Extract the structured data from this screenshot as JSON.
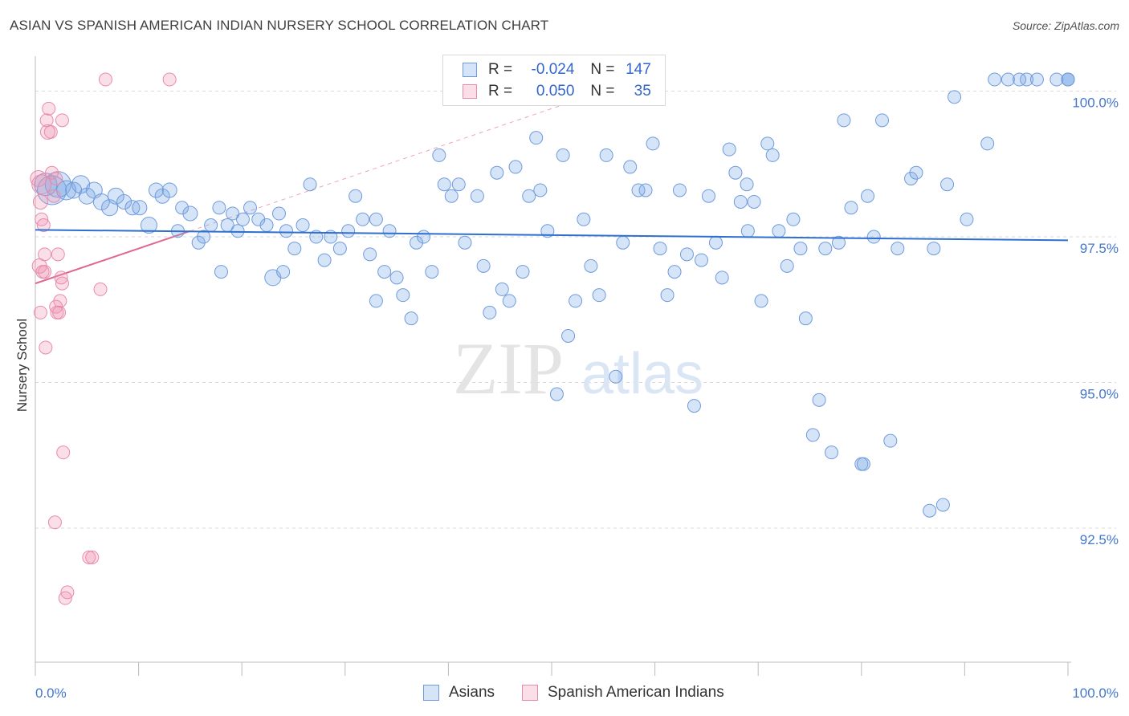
{
  "header": {
    "title": "ASIAN VS SPANISH AMERICAN INDIAN NURSERY SCHOOL CORRELATION CHART",
    "source": "Source: ZipAtlas.com"
  },
  "watermark": {
    "zip": "ZIP",
    "atlas": "atlas"
  },
  "legend": {
    "rows": [
      {
        "r_label": "R =",
        "r_value": "-0.024",
        "n_label": "N =",
        "n_value": "147"
      },
      {
        "r_label": "R =",
        "r_value": "0.050",
        "n_label": "N =",
        "n_value": "35"
      }
    ]
  },
  "bottom_legend": {
    "items": [
      {
        "label": "Asians"
      },
      {
        "label": "Spanish American Indians"
      }
    ]
  },
  "colors": {
    "asian_fill": "rgba(120,165,230,0.30)",
    "asian_stroke": "#6f9bdc",
    "asian_line": "#2f6fcf",
    "sai_fill": "rgba(240,150,180,0.30)",
    "sai_stroke": "#e98aab",
    "sai_line": "#e06890",
    "tick_text": "#4477cc",
    "grid": "#d9d9d9"
  },
  "chart_data": {
    "type": "scatter",
    "title": "ASIAN VS SPANISH AMERICAN INDIAN NURSERY SCHOOL CORRELATION CHART",
    "xlabel": "",
    "ylabel": "Nursery School",
    "xlim": [
      0,
      100
    ],
    "ylim": [
      90.2,
      100.6
    ],
    "x_tick_labels": [
      "0.0%",
      "100.0%"
    ],
    "y_ticks": [
      92.5,
      95.0,
      97.5,
      100.0
    ],
    "y_tick_labels": [
      "92.5%",
      "95.0%",
      "97.5%",
      "100.0%"
    ],
    "grid": true,
    "legend_position": "top-center",
    "series": [
      {
        "name": "Asians",
        "r": -0.024,
        "n": 147,
        "trend": {
          "x": [
            0,
            100
          ],
          "y": [
            97.62,
            97.44
          ]
        },
        "points": [
          [
            1.0,
            98.4,
            14
          ],
          [
            1.6,
            98.3,
            18
          ],
          [
            2.2,
            98.4,
            16
          ],
          [
            3.0,
            98.3,
            12
          ],
          [
            3.7,
            98.3,
            10
          ],
          [
            4.4,
            98.4,
            11
          ],
          [
            5.0,
            98.2,
            10
          ],
          [
            5.7,
            98.3,
            10
          ],
          [
            6.4,
            98.1,
            10
          ],
          [
            7.2,
            98.0,
            10
          ],
          [
            7.8,
            98.2,
            10
          ],
          [
            8.6,
            98.1,
            9
          ],
          [
            9.4,
            98.0,
            9
          ],
          [
            10.1,
            98.0,
            9
          ],
          [
            11.0,
            97.7,
            10
          ],
          [
            11.7,
            98.3,
            9
          ],
          [
            12.3,
            98.2,
            9
          ],
          [
            13.0,
            98.3,
            9
          ],
          [
            13.8,
            97.6,
            8
          ],
          [
            14.2,
            98.0,
            8
          ],
          [
            15.0,
            97.9,
            9
          ],
          [
            15.8,
            97.4,
            8
          ],
          [
            16.3,
            97.5,
            8
          ],
          [
            17.0,
            97.7,
            8
          ],
          [
            17.8,
            98.0,
            8
          ],
          [
            18.6,
            97.7,
            8
          ],
          [
            19.1,
            97.9,
            8
          ],
          [
            19.6,
            97.6,
            8
          ],
          [
            20.1,
            97.8,
            8
          ],
          [
            20.8,
            98.0,
            8
          ],
          [
            21.6,
            97.8,
            8
          ],
          [
            22.4,
            97.7,
            8
          ],
          [
            23.0,
            96.8,
            10
          ],
          [
            23.6,
            97.9,
            8
          ],
          [
            24.3,
            97.6,
            8
          ],
          [
            25.1,
            97.3,
            8
          ],
          [
            25.9,
            97.7,
            8
          ],
          [
            26.6,
            98.4,
            8
          ],
          [
            27.2,
            97.5,
            8
          ],
          [
            28.0,
            97.1,
            8
          ],
          [
            28.6,
            97.5,
            8
          ],
          [
            29.5,
            97.3,
            8
          ],
          [
            30.3,
            97.6,
            8
          ],
          [
            31.0,
            98.2,
            8
          ],
          [
            31.7,
            97.8,
            8
          ],
          [
            32.4,
            97.2,
            8
          ],
          [
            33.0,
            97.8,
            8
          ],
          [
            33.8,
            96.9,
            8
          ],
          [
            34.3,
            97.6,
            8
          ],
          [
            35.0,
            96.8,
            8
          ],
          [
            35.6,
            96.5,
            8
          ],
          [
            36.4,
            96.1,
            8
          ],
          [
            36.9,
            97.4,
            8
          ],
          [
            37.6,
            97.5,
            8
          ],
          [
            38.4,
            96.9,
            8
          ],
          [
            39.1,
            98.9,
            8
          ],
          [
            39.6,
            98.4,
            8
          ],
          [
            40.3,
            98.2,
            8
          ],
          [
            41.0,
            98.4,
            8
          ],
          [
            41.6,
            97.4,
            8
          ],
          [
            42.8,
            98.2,
            8
          ],
          [
            43.4,
            97.0,
            8
          ],
          [
            44.0,
            96.2,
            8
          ],
          [
            44.7,
            98.6,
            8
          ],
          [
            45.2,
            96.6,
            8
          ],
          [
            45.9,
            96.4,
            8
          ],
          [
            46.5,
            98.7,
            8
          ],
          [
            47.2,
            96.9,
            8
          ],
          [
            47.8,
            98.2,
            8
          ],
          [
            48.5,
            99.2,
            8
          ],
          [
            48.9,
            98.3,
            8
          ],
          [
            49.6,
            97.6,
            8
          ],
          [
            50.5,
            94.8,
            8
          ],
          [
            51.1,
            98.9,
            8
          ],
          [
            51.6,
            95.8,
            8
          ],
          [
            52.3,
            96.4,
            8
          ],
          [
            53.1,
            97.8,
            8
          ],
          [
            53.8,
            97.0,
            8
          ],
          [
            54.6,
            96.5,
            8
          ],
          [
            55.3,
            98.9,
            8
          ],
          [
            56.2,
            95.1,
            8
          ],
          [
            56.9,
            97.4,
            8
          ],
          [
            57.6,
            98.7,
            8
          ],
          [
            58.4,
            98.3,
            8
          ],
          [
            59.1,
            98.3,
            8
          ],
          [
            59.8,
            99.1,
            8
          ],
          [
            60.5,
            97.3,
            8
          ],
          [
            61.2,
            96.5,
            8
          ],
          [
            61.9,
            96.9,
            8
          ],
          [
            62.4,
            98.3,
            8
          ],
          [
            63.1,
            97.2,
            8
          ],
          [
            63.8,
            94.6,
            8
          ],
          [
            64.5,
            97.1,
            8
          ],
          [
            65.2,
            98.2,
            8
          ],
          [
            65.9,
            97.4,
            8
          ],
          [
            66.5,
            96.8,
            8
          ],
          [
            67.2,
            99.0,
            8
          ],
          [
            67.8,
            98.6,
            8
          ],
          [
            68.3,
            98.1,
            8
          ],
          [
            68.9,
            98.4,
            8
          ],
          [
            69.6,
            98.1,
            8
          ],
          [
            70.3,
            96.4,
            8
          ],
          [
            70.9,
            99.1,
            8
          ],
          [
            71.4,
            98.9,
            8
          ],
          [
            72.0,
            97.6,
            8
          ],
          [
            72.8,
            97.0,
            8
          ],
          [
            73.4,
            97.8,
            8
          ],
          [
            74.1,
            97.3,
            8
          ],
          [
            74.6,
            96.1,
            8
          ],
          [
            75.3,
            94.1,
            8
          ],
          [
            75.9,
            94.7,
            8
          ],
          [
            76.5,
            97.3,
            8
          ],
          [
            77.1,
            93.8,
            8
          ],
          [
            77.8,
            97.4,
            8
          ],
          [
            78.3,
            99.5,
            8
          ],
          [
            79.0,
            98.0,
            8
          ],
          [
            80.0,
            93.6,
            8
          ],
          [
            80.6,
            98.2,
            8
          ],
          [
            81.2,
            97.5,
            8
          ],
          [
            82.0,
            99.5,
            8
          ],
          [
            82.8,
            94.0,
            8
          ],
          [
            83.5,
            97.3,
            8
          ],
          [
            84.8,
            98.5,
            8
          ],
          [
            85.3,
            98.6,
            8
          ],
          [
            86.6,
            92.8,
            8
          ],
          [
            87.0,
            97.3,
            8
          ],
          [
            87.9,
            92.9,
            8
          ],
          [
            88.3,
            98.4,
            8
          ],
          [
            90.2,
            97.8,
            8
          ],
          [
            92.2,
            99.1,
            8
          ],
          [
            92.9,
            100.2,
            8
          ],
          [
            96.0,
            100.2,
            8
          ],
          [
            97.0,
            100.2,
            8
          ],
          [
            98.9,
            100.2,
            8
          ],
          [
            101.6,
            100.2,
            8
          ],
          [
            102.3,
            100.2,
            8
          ],
          [
            100.0,
            100.2,
            8
          ],
          [
            94.2,
            100.2,
            8
          ],
          [
            89.0,
            99.9,
            8
          ],
          [
            80.2,
            93.6,
            8
          ],
          [
            95.3,
            100.2,
            8
          ],
          [
            60.0,
            99.9,
            8
          ],
          [
            69.0,
            97.6,
            8
          ],
          [
            18.0,
            96.9,
            8
          ],
          [
            24.0,
            96.9,
            8
          ],
          [
            33.0,
            96.4,
            8
          ]
        ]
      },
      {
        "name": "Spanish American Indians",
        "r": 0.05,
        "n": 35,
        "trend": {
          "x": [
            0,
            15
          ],
          "y": [
            96.7,
            97.6
          ]
        },
        "points": [
          [
            0.3,
            98.5,
            10
          ],
          [
            0.5,
            98.1,
            9
          ],
          [
            0.6,
            98.4,
            12
          ],
          [
            0.6,
            97.8,
            8
          ],
          [
            0.8,
            97.7,
            8
          ],
          [
            0.9,
            97.2,
            8
          ],
          [
            0.4,
            97.0,
            9
          ],
          [
            0.7,
            96.9,
            8
          ],
          [
            0.9,
            96.9,
            8
          ],
          [
            0.5,
            96.2,
            8
          ],
          [
            1.0,
            95.6,
            8
          ],
          [
            1.2,
            99.3,
            9
          ],
          [
            1.3,
            99.7,
            8
          ],
          [
            1.1,
            99.5,
            8
          ],
          [
            1.6,
            98.6,
            8
          ],
          [
            1.8,
            98.2,
            8
          ],
          [
            2.0,
            98.5,
            8
          ],
          [
            2.2,
            97.2,
            8
          ],
          [
            2.4,
            96.4,
            8
          ],
          [
            2.0,
            96.3,
            8
          ],
          [
            2.1,
            96.2,
            8
          ],
          [
            2.6,
            99.5,
            8
          ],
          [
            2.3,
            96.2,
            8
          ],
          [
            2.5,
            96.8,
            8
          ],
          [
            2.6,
            96.7,
            8
          ],
          [
            2.7,
            93.8,
            8
          ],
          [
            2.9,
            91.3,
            8
          ],
          [
            3.1,
            91.4,
            8
          ],
          [
            1.5,
            99.3,
            8
          ],
          [
            1.9,
            92.6,
            8
          ],
          [
            5.2,
            92.0,
            8
          ],
          [
            5.5,
            92.0,
            8
          ],
          [
            6.3,
            96.6,
            8
          ],
          [
            6.8,
            100.2,
            8
          ],
          [
            13.0,
            100.2,
            8
          ]
        ]
      }
    ]
  }
}
